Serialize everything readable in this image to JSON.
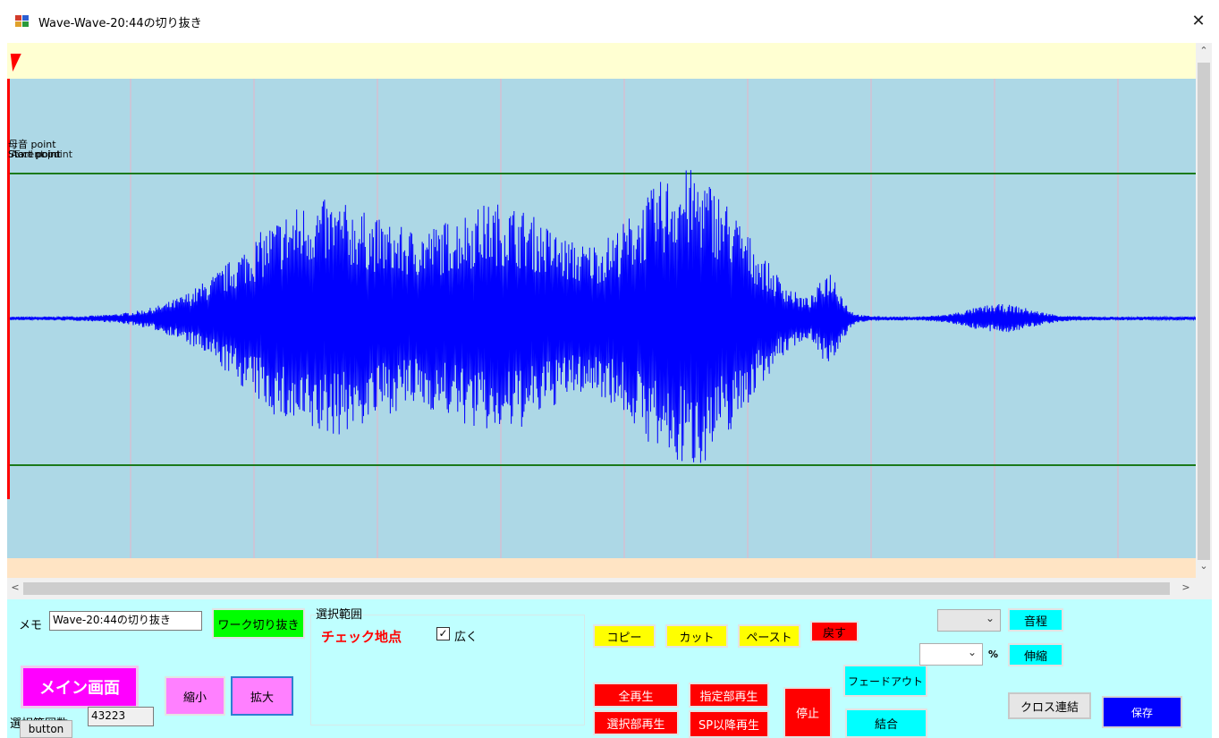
{
  "window": {
    "title": "Wave-Wave-20:44の切り抜き",
    "close_glyph": "✕"
  },
  "wave": {
    "annotations": [
      "母音 point",
      "Start point",
      "Accent point",
      "End point"
    ],
    "colors": {
      "top_strip": "#ffffd2",
      "wave_bg": "#add8e6",
      "bottom_strip": "#ffe4c4",
      "waveform": "#0000ff",
      "guide_lines": "#1b7a1b",
      "grid_lines": "#e8b4c8",
      "cursor": "#ff0000"
    }
  },
  "scrollbars": {
    "up": "⌃",
    "down": "⌄",
    "left": "<",
    "right": ">"
  },
  "controls": {
    "memo_label": "メモ",
    "memo_value": "Wave-20:44の切り抜き",
    "work_cut_button": "ワーク切り抜き",
    "selection_group_title": "選択範囲",
    "checkpoint_label": "チェック地点",
    "wide_checkbox_label": "広く",
    "wide_checked": true,
    "main_screen_button": "メイン画面",
    "shrink_button": "縮小",
    "enlarge_button": "拡大",
    "selection_count_label": "選択範囲数",
    "selection_count_value": "43223",
    "button_label": "button",
    "copy_button": "コピー",
    "cut_button": "カット",
    "paste_button": "ペースト",
    "undo_button": "戻す",
    "play_all_button": "全再生",
    "play_range_button": "指定部再生",
    "play_selection_button": "選択部再生",
    "play_after_sp_button": "SP以降再生",
    "stop_button": "停止",
    "fade_out_button": "フェードアウト",
    "join_button": "結合",
    "pitch_button": "音程",
    "stretch_button": "伸縮",
    "percent_label": "%",
    "cross_join_button": "クロス連結",
    "save_button": "保存",
    "combo_chevron": "⌄"
  }
}
